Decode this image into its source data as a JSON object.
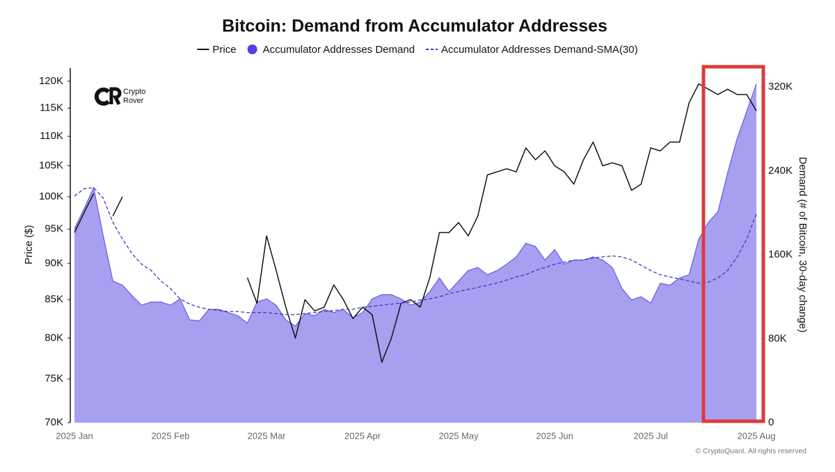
{
  "chart_data": {
    "type": "line",
    "title": "Bitcoin: Demand from Accumulator Addresses",
    "ylabel": "Price ($)",
    "y2label": "Demand (# of Bitcoin, 30-day change)",
    "logo": [
      "Crypto",
      "Rover"
    ],
    "source": "© CryptoQuant. All rights reserved",
    "ylog": true,
    "legend": "top",
    "categories": [
      "2025 Jan",
      null,
      null,
      null,
      null,
      null,
      null,
      null,
      null,
      null,
      "2025 Feb",
      null,
      null,
      null,
      null,
      null,
      null,
      null,
      null,
      null,
      "2025 Mar",
      null,
      null,
      null,
      null,
      null,
      null,
      null,
      null,
      null,
      "2025 Apr",
      null,
      null,
      null,
      null,
      null,
      null,
      null,
      null,
      null,
      "2025 May",
      null,
      null,
      null,
      null,
      null,
      null,
      null,
      null,
      null,
      "2025 Jun",
      null,
      null,
      null,
      null,
      null,
      null,
      null,
      null,
      null,
      "2025 Jul",
      null,
      null,
      null,
      null,
      null,
      null,
      null,
      null,
      null,
      null,
      "2025 Aug"
    ],
    "ylim": [
      70000,
      122500
    ],
    "yticks": [
      {
        "value": 70000,
        "label": "70K"
      },
      {
        "value": 75000,
        "label": "75K"
      },
      {
        "value": 80000,
        "label": "80K"
      },
      {
        "value": 85000,
        "label": "85K"
      },
      {
        "value": 90000,
        "label": "90K"
      },
      {
        "value": 95000,
        "label": "95K"
      },
      {
        "value": 100000,
        "label": "100K"
      },
      {
        "value": 105000,
        "label": "105K"
      },
      {
        "value": 110000,
        "label": "110K"
      },
      {
        "value": 115000,
        "label": "115K"
      },
      {
        "value": 120000,
        "label": "120K"
      }
    ],
    "y2lim": [
      0,
      338000
    ],
    "y2ticks": [
      0,
      {
        "value": 80000,
        "label": "80K"
      },
      {
        "value": 160000,
        "label": "160K"
      },
      {
        "value": 240000,
        "label": "240K"
      },
      {
        "value": 320000,
        "label": "320K"
      }
    ],
    "series": [
      {
        "name": "Price",
        "type": "line",
        "axis": "y",
        "color": "#111111",
        "values": [
          94500,
          97500,
          100500,
          null,
          97000,
          100000,
          null,
          null,
          null,
          null,
          null,
          null,
          null,
          null,
          null,
          null,
          null,
          null,
          88000,
          84500,
          94000,
          89000,
          84000,
          80000,
          85000,
          83500,
          84000,
          87000,
          85000,
          82500,
          84000,
          83000,
          77000,
          80000,
          84500,
          85000,
          84000,
          88000,
          94500,
          94500,
          96000,
          94000,
          97000,
          103500,
          104000,
          104500,
          104000,
          108000,
          106000,
          107500,
          105000,
          104000,
          102000,
          106000,
          109000,
          105000,
          105500,
          105000,
          101000,
          102000,
          108000,
          107500,
          109000,
          109000,
          116000,
          119500,
          118500,
          117500,
          118500,
          117500,
          117500,
          114500
        ]
      },
      {
        "name": "Accumulator Addresses Demand",
        "type": "area",
        "axis": "y2",
        "color": "#6a5ae0",
        "fill": "#a79ff0",
        "values": [
          185000,
          204000,
          224000,
          178000,
          135000,
          131000,
          121000,
          112000,
          115000,
          115000,
          112000,
          118000,
          98000,
          97000,
          108000,
          108000,
          105000,
          102000,
          95000,
          115000,
          118000,
          112000,
          98000,
          92000,
          104000,
          102000,
          108000,
          105000,
          108000,
          100000,
          105000,
          118000,
          122000,
          122000,
          118000,
          112000,
          115000,
          125000,
          138000,
          125000,
          135000,
          145000,
          148000,
          141000,
          145000,
          151000,
          158000,
          171000,
          168000,
          155000,
          165000,
          151000,
          155000,
          155000,
          158000,
          155000,
          148000,
          128000,
          117000,
          120000,
          114000,
          133000,
          131000,
          138000,
          141000,
          175000,
          191000,
          201000,
          238000,
          271000,
          297000,
          323000
        ]
      },
      {
        "name": "Accumulator Addresses Demand-SMA(30)",
        "type": "line",
        "dashed": true,
        "axis": "y2",
        "color": "#4536b8",
        "values": [
          216000,
          223000,
          224000,
          214000,
          191000,
          175000,
          161000,
          151000,
          145000,
          135000,
          128000,
          118000,
          113000,
          110000,
          108000,
          107000,
          106000,
          106000,
          105000,
          105000,
          105000,
          104000,
          103000,
          103000,
          104000,
          105000,
          106000,
          107000,
          108000,
          108000,
          110000,
          111000,
          112000,
          113000,
          114000,
          115000,
          117000,
          118000,
          120000,
          123000,
          125000,
          127000,
          129000,
          131000,
          133000,
          136000,
          139000,
          141000,
          145000,
          148000,
          151000,
          153000,
          155000,
          155000,
          157000,
          158000,
          159000,
          158000,
          155000,
          150000,
          145000,
          141000,
          139000,
          137000,
          135000,
          133000,
          134000,
          138000,
          145000,
          158000,
          175000,
          199000
        ]
      }
    ]
  }
}
